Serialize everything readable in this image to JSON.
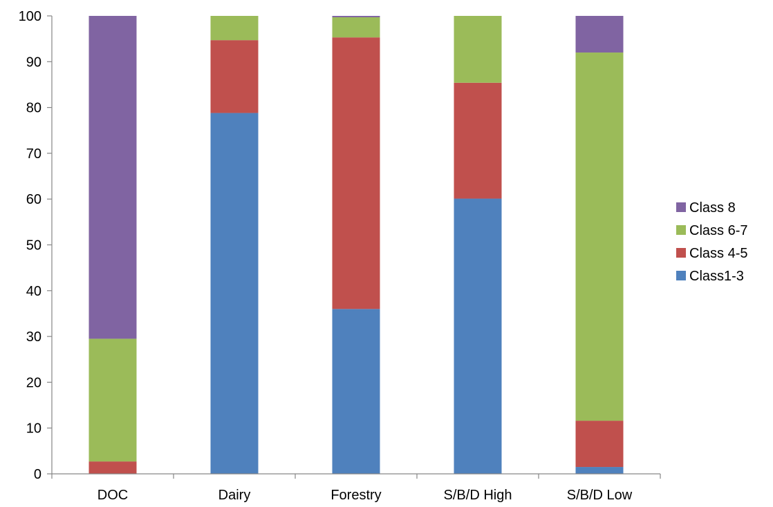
{
  "chart_data": {
    "type": "bar",
    "stacked": true,
    "categories": [
      "DOC",
      "Dairy",
      "Forestry",
      "S/B/D High",
      "S/B/D Low"
    ],
    "series": [
      {
        "name": "Class1-3",
        "color": "#4F81BD",
        "values": [
          0,
          78.8,
          36.0,
          60.1,
          1.5
        ]
      },
      {
        "name": "Class 4-5",
        "color": "#C0504D",
        "values": [
          2.7,
          15.9,
          59.3,
          25.3,
          10.1
        ]
      },
      {
        "name": "Class 6-7",
        "color": "#9BBB59",
        "values": [
          26.8,
          5.3,
          4.4,
          14.6,
          80.4
        ]
      },
      {
        "name": "Class 8",
        "color": "#8064A2",
        "values": [
          70.5,
          0,
          0.3,
          0,
          8.0
        ]
      }
    ],
    "ylim": [
      0,
      100
    ],
    "yticks": [
      "0",
      "10",
      "20",
      "30",
      "40",
      "50",
      "60",
      "70",
      "80",
      "90",
      "100"
    ],
    "legend_position": "right",
    "legend_order": [
      "Class 8",
      "Class 6-7",
      "Class 4-5",
      "Class1-3"
    ],
    "grid": false
  }
}
